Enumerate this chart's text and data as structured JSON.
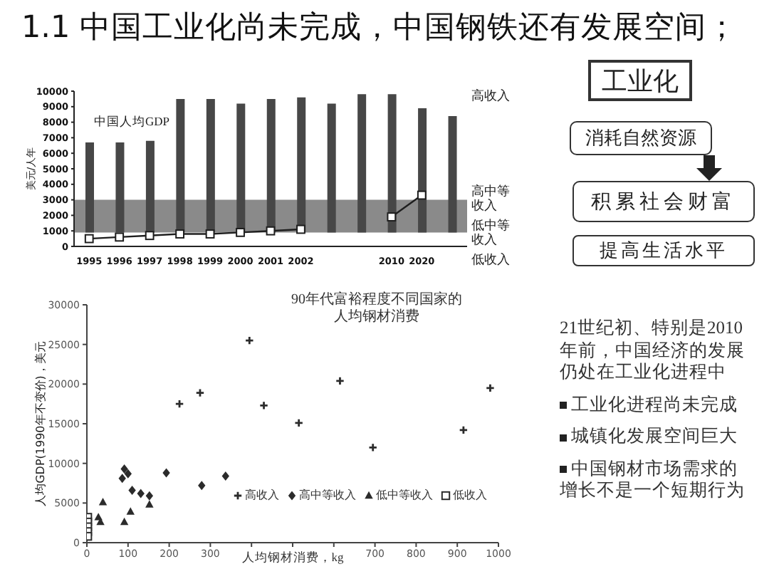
{
  "chart_data": [
    {
      "type": "line",
      "title": "1.1 中国工业化尚未完成，中国钢铁还有发展空间；",
      "ylabel": "美元/人年",
      "categories": [
        "1995",
        "1996",
        "1997",
        "1998",
        "1999",
        "2000",
        "2001",
        "2002",
        null,
        null,
        "2010",
        "2020",
        null
      ],
      "series": [
        {
          "type": "bar",
          "color": "#474747",
          "base": [
            900,
            900,
            900,
            900,
            900,
            900,
            900,
            900,
            900,
            900,
            900,
            900,
            900
          ],
          "values": [
            5800,
            5800,
            5900,
            8600,
            8600,
            8300,
            8600,
            8700,
            8300,
            8900,
            8900,
            8000,
            7500
          ]
        },
        {
          "type": "line",
          "name": "中国人均GDP",
          "color": "#1e1e1e",
          "marker": "square",
          "values": [
            500,
            600,
            700,
            800,
            800,
            900,
            1000,
            1100,
            null,
            null,
            1900,
            3300,
            null
          ]
        }
      ],
      "bands": [
        {
          "axis": "y",
          "from": 900,
          "to": 3000,
          "color": "#8a8a8a"
        }
      ],
      "annotations": [
        "高收入",
        "高中等收入",
        "低中等收入",
        "低收入"
      ],
      "ylim": [
        0,
        10000
      ],
      "yticks": [
        0,
        1000,
        2000,
        3000,
        4000,
        5000,
        6000,
        7000,
        8000,
        9000,
        10000
      ]
    },
    {
      "type": "scatter",
      "title": "90年代富裕程度不同国家的人均钢材消费",
      "xlabel": "人均钢材消费，kg",
      "ylabel": "人均GDP(1990年不变价)，美元",
      "xlim": [
        0,
        1000
      ],
      "xticks": [
        0,
        100,
        200,
        300,
        {
          "value": 400,
          "label": null
        },
        {
          "value": 500,
          "label": null
        },
        {
          "value": 600,
          "label": null
        },
        700,
        800,
        900,
        1000
      ],
      "ylim": [
        0,
        30000
      ],
      "yticks": [
        0,
        5000,
        10000,
        15000,
        20000,
        25000,
        30000
      ],
      "legend": "bottom right",
      "series": [
        {
          "name": "高收入",
          "marker": "cross",
          "color": "#2b2b2b",
          "x": [
            395,
            275,
            225,
            430,
            515,
            615,
            695,
            915,
            980
          ],
          "values": [
            25500,
            18900,
            17500,
            17300,
            15100,
            20400,
            12000,
            14200,
            19500
          ]
        },
        {
          "name": "高中等收入",
          "marker": "diamond",
          "color": "#2b2b2b",
          "x": [
            91,
            100,
            86,
            110,
            131,
            152,
            193,
            279,
            337
          ],
          "values": [
            9300,
            8700,
            8100,
            6600,
            6200,
            5900,
            8800,
            7200,
            8400
          ]
        },
        {
          "name": "低中等收入",
          "marker": "triangle",
          "color": "#2b2b2b",
          "x": [
            39,
            28,
            33,
            91,
            106,
            152
          ],
          "values": [
            5100,
            3200,
            2600,
            2600,
            3900,
            4800
          ]
        },
        {
          "name": "低收入",
          "marker": "square",
          "color": "#2b2b2b",
          "x": [
            2,
            2,
            2,
            2,
            2
          ],
          "values": [
            3200,
            2600,
            2000,
            1400,
            800
          ]
        }
      ]
    },
    {
      "type": "other",
      "annotations": [
        "工业化",
        "消耗自然资源",
        "积累社会财富",
        "提高生活水平"
      ]
    },
    {
      "type": "other",
      "annotations": [
        "21世纪初、特别是2010年前，中国经济的发展仍处在工业化进程中",
        "工业化进程尚未完成",
        "城镇化发展空间巨大",
        "中国钢材市场需求的增长不是一个短期行为"
      ]
    }
  ]
}
